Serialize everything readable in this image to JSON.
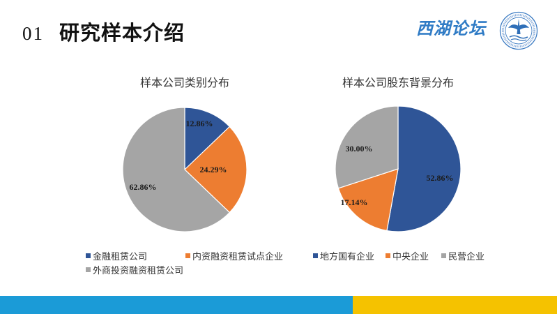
{
  "header": {
    "number": "01",
    "title": "研究样本介绍"
  },
  "brand": {
    "name": "西湖论坛",
    "color": "#2F7BC5",
    "emblem_icon": "forum-emblem-icon"
  },
  "chart_data": [
    {
      "type": "pie",
      "title": "样本公司类别分布",
      "categories": [
        "金融租赁公司",
        "内资融资租赁试点企业",
        "外商投资融资租赁公司"
      ],
      "values": [
        12.86,
        24.29,
        62.86
      ],
      "labels": [
        "12.86%",
        "24.29%",
        "62.86%"
      ],
      "colors": [
        "#2F5597",
        "#ED7D31",
        "#A5A5A5"
      ],
      "legend_position": "bottom"
    },
    {
      "type": "pie",
      "title": "样本公司股东背景分布",
      "categories": [
        "地方国有企业",
        "中央企业",
        "民营企业"
      ],
      "values": [
        52.86,
        17.14,
        30.0
      ],
      "labels": [
        "52.86%",
        "17.14%",
        "30.00%"
      ],
      "colors": [
        "#2F5597",
        "#ED7D31",
        "#A5A5A5"
      ],
      "legend_position": "bottom"
    }
  ],
  "footer": {
    "bar_colors": [
      "#1B9BD7",
      "#F5C200"
    ]
  }
}
